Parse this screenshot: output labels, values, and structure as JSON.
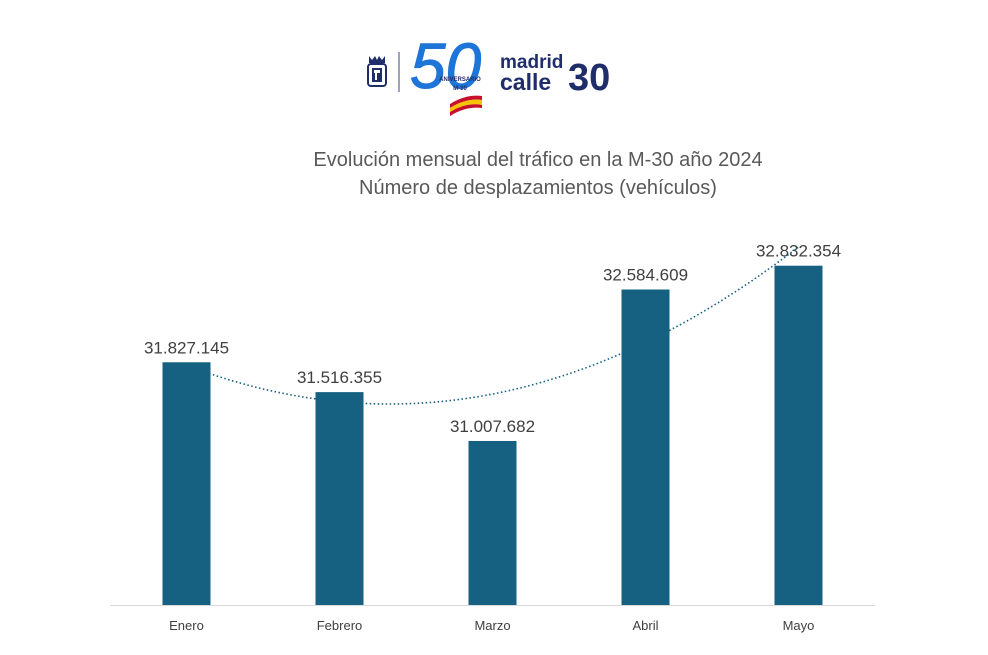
{
  "logos": {
    "crest_icon": "madrid-city-crest-icon",
    "anniversary_number": "50",
    "anniversary_line1": "ANIVERSARIO",
    "anniversary_line2": "M-30",
    "brand_line1": "madrid",
    "brand_line2a": "calle",
    "brand_line2b": "30",
    "colors": {
      "brand_blue": "#1d75d8",
      "brand_navy": "#1f2d6b",
      "flag_red": "#c8102e",
      "flag_yellow": "#f6c500"
    }
  },
  "header": {
    "title_line1": "Evolución mensual del tráfico en la M-30 año 2024",
    "title_line2": "Número de desplazamientos (vehículos)"
  },
  "chart_data": {
    "type": "bar",
    "title": "Evolución mensual del tráfico en la M-30 año 2024",
    "subtitle": "Número de desplazamientos (vehículos)",
    "categories": [
      "Enero",
      "Febrero",
      "Marzo",
      "Abril",
      "Mayo"
    ],
    "values": [
      31827145,
      31516355,
      31007682,
      32584609,
      32832354
    ],
    "data_labels": [
      "31.827.145",
      "31.516.355",
      "31.007.682",
      "32.584.609",
      "32.832.354"
    ],
    "ylim": [
      29300000,
      33100000
    ],
    "grid": false,
    "legend": "none",
    "trendline": {
      "type": "polynomial",
      "style": "dotted"
    },
    "colors": {
      "bar": "#166082",
      "trendline": "#166082",
      "axis": "#d9d9d9",
      "label": "#404040"
    }
  }
}
